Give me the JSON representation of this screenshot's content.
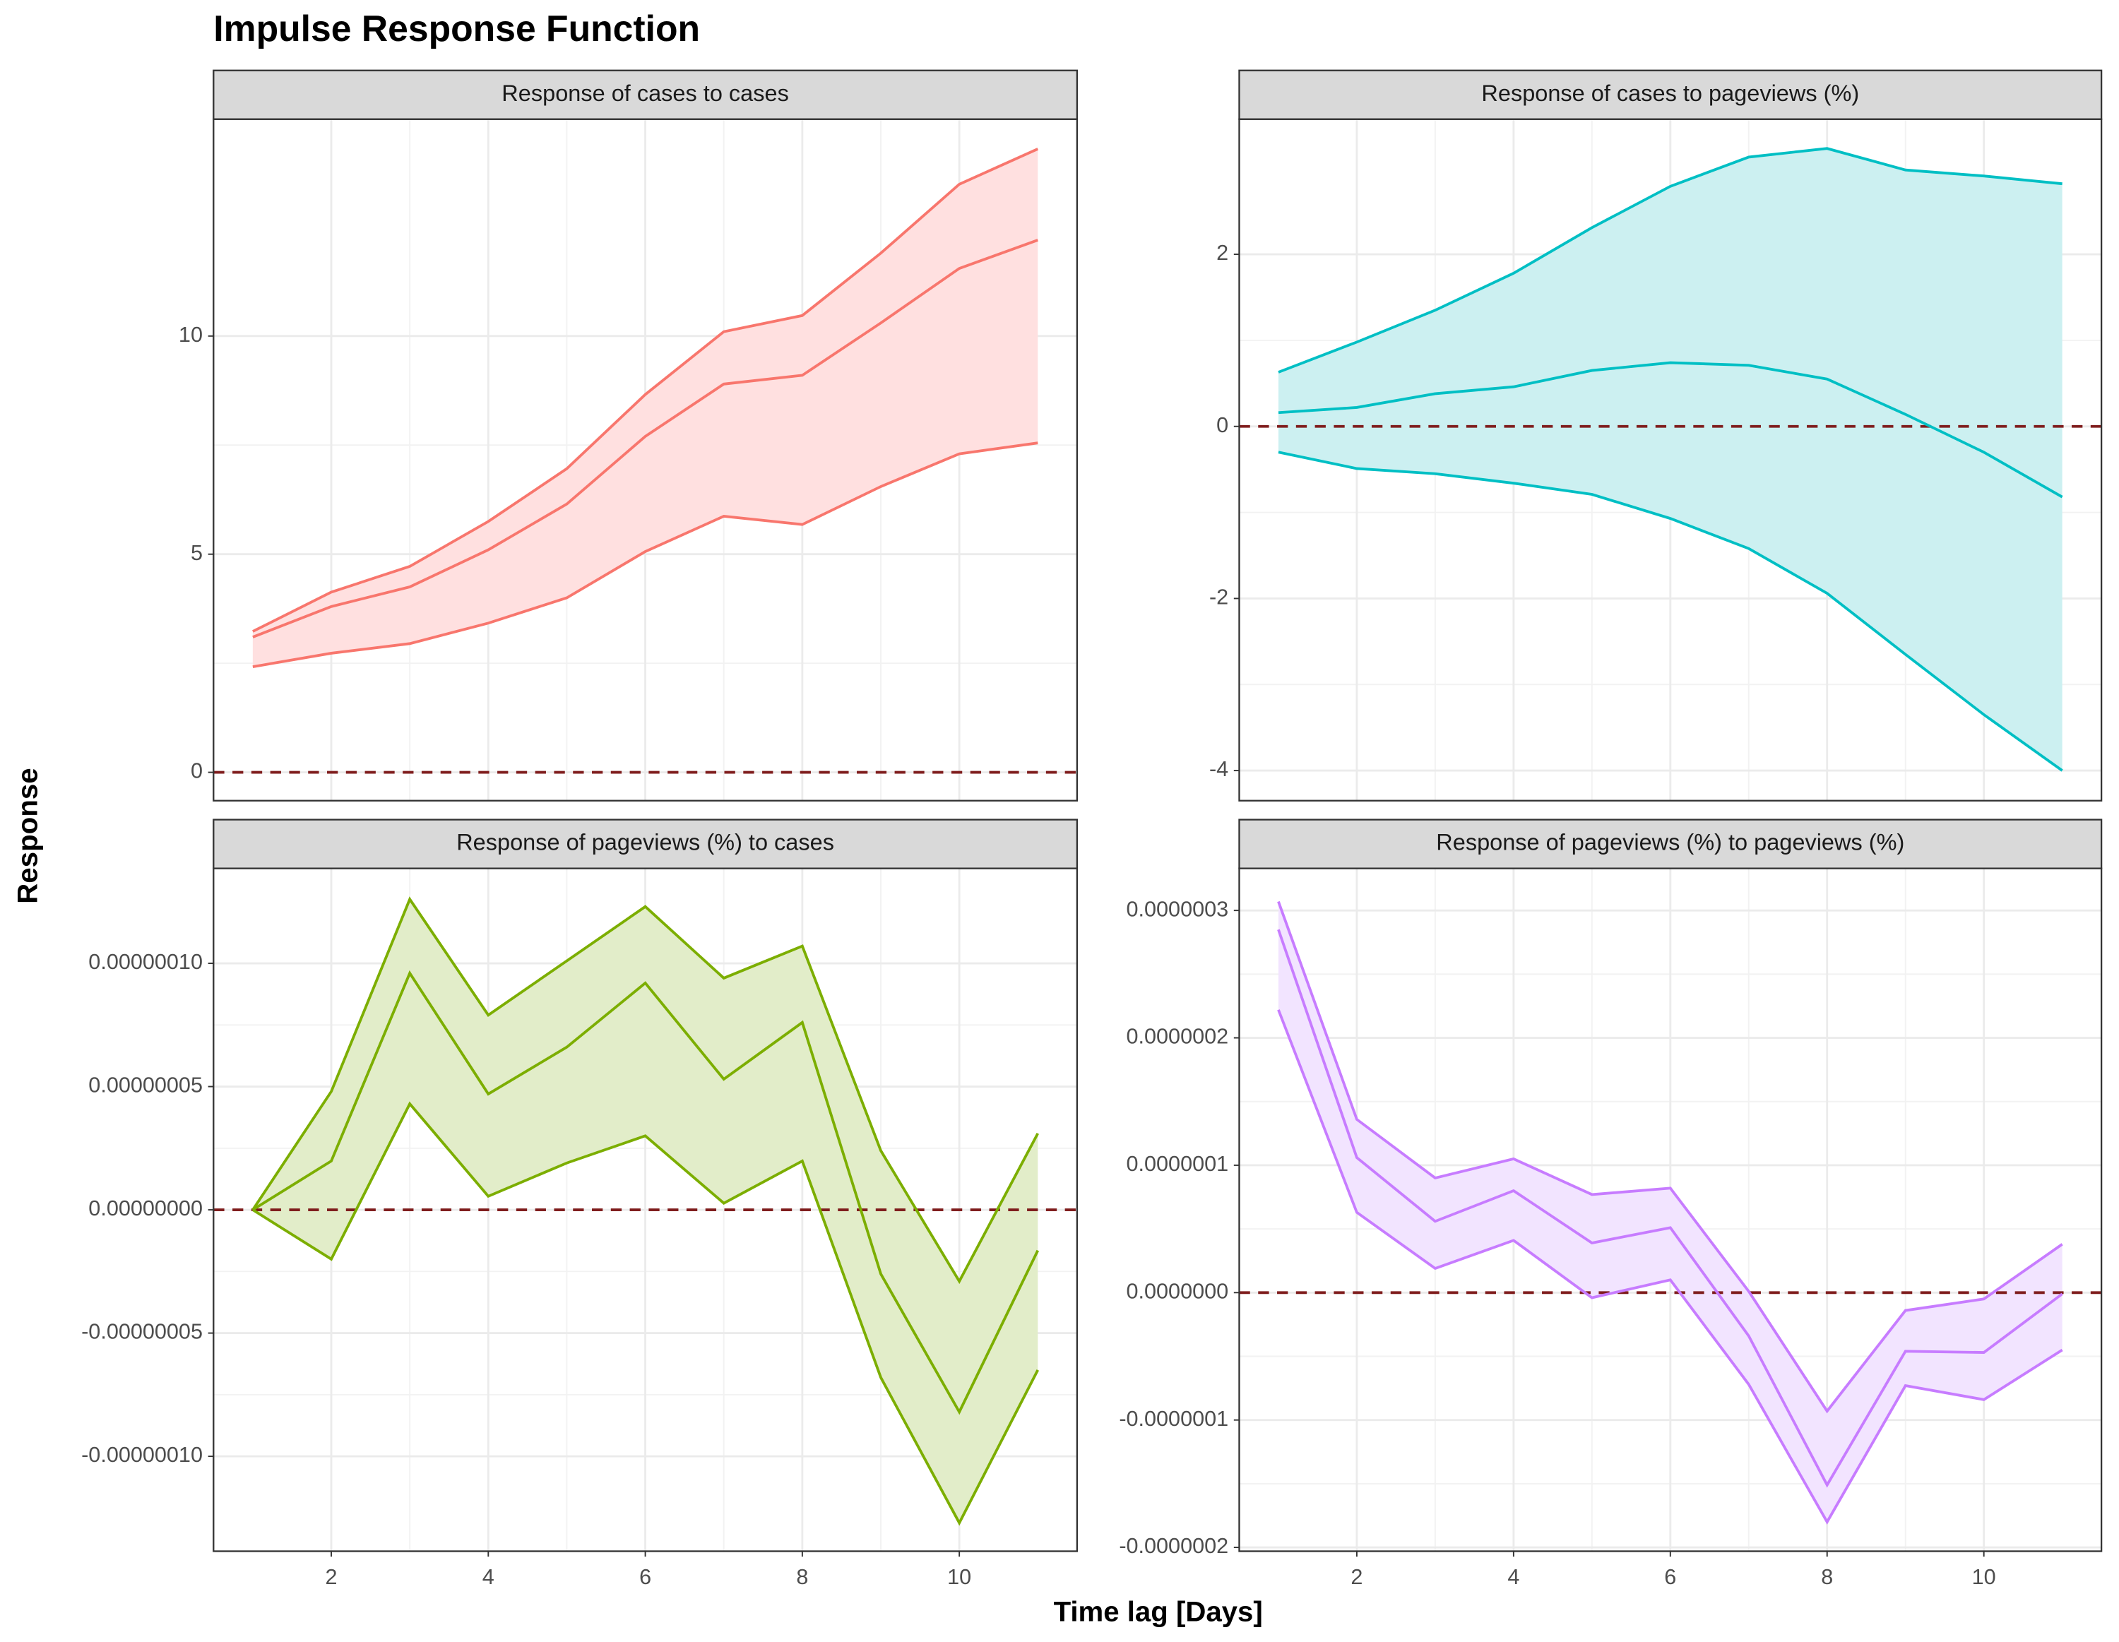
{
  "title": "Impulse Response Function",
  "x_label": "Time lag [Days]",
  "y_label": "Response",
  "chart_data": [
    {
      "type": "line",
      "title": "Response of cases to cases",
      "x": [
        1,
        2,
        3,
        4,
        5,
        6,
        7,
        8,
        9,
        10,
        11
      ],
      "values": [
        3.1,
        3.8,
        4.25,
        5.1,
        6.15,
        7.7,
        8.9,
        9.1,
        10.3,
        11.55,
        12.2
      ],
      "upper": [
        3.23,
        4.13,
        4.72,
        5.75,
        6.96,
        8.66,
        10.1,
        10.47,
        11.9,
        13.48,
        14.29
      ],
      "lower": [
        2.42,
        2.73,
        2.95,
        3.42,
        4.0,
        5.06,
        5.87,
        5.68,
        6.55,
        7.3,
        7.55
      ],
      "color": "#f8766d",
      "fill": "#ffe0e0",
      "hline": 0,
      "xlim": [
        0.5,
        11.5
      ],
      "xticks": [
        2,
        4,
        6,
        8,
        10
      ],
      "ylim": [
        -0.65,
        14.97
      ],
      "yticks": [
        0,
        5,
        10
      ],
      "grid": true
    },
    {
      "type": "line",
      "title": "Response of cases to pageviews (%)",
      "x": [
        1,
        2,
        3,
        4,
        5,
        6,
        7,
        8,
        9,
        10,
        11
      ],
      "values": [
        0.16,
        0.22,
        0.38,
        0.46,
        0.65,
        0.74,
        0.71,
        0.55,
        0.14,
        -0.3,
        -0.82
      ],
      "upper": [
        0.63,
        0.98,
        1.35,
        1.78,
        2.31,
        2.79,
        3.13,
        3.23,
        2.98,
        2.91,
        2.82
      ],
      "lower": [
        -0.3,
        -0.49,
        -0.55,
        -0.66,
        -0.79,
        -1.07,
        -1.42,
        -1.94,
        -2.65,
        -3.35,
        -4.0
      ],
      "color": "#00bfc4",
      "fill": "#ccf0f1",
      "hline": 0,
      "xlim": [
        0.5,
        11.5
      ],
      "xticks": [
        2,
        4,
        6,
        8,
        10
      ],
      "ylim": [
        -4.35,
        3.57
      ],
      "yticks": [
        -4,
        -2,
        0,
        2
      ],
      "grid": true
    },
    {
      "type": "line",
      "title": "Response of pageviews (%) to cases",
      "x": [
        1,
        2,
        3,
        4,
        5,
        6,
        7,
        8,
        9,
        10,
        11
      ],
      "values": [
        0,
        1.98e-08,
        9.6e-08,
        4.7e-08,
        6.6e-08,
        9.2e-08,
        5.3e-08,
        7.6e-08,
        -2.6e-08,
        -8.2e-08,
        -1.65e-08
      ],
      "upper": [
        0,
        4.8e-08,
        1.26e-07,
        7.9e-08,
        1.01e-07,
        1.23e-07,
        9.4e-08,
        1.07e-07,
        2.4e-08,
        -2.9e-08,
        3.1e-08
      ],
      "lower": [
        0,
        -2e-08,
        4.3e-08,
        5.5e-09,
        1.9e-08,
        3e-08,
        2.7e-09,
        1.98e-08,
        -6.8e-08,
        -1.27e-07,
        -6.5e-08
      ],
      "color": "#7cae00",
      "fill": "#e2edc9",
      "hline": 0,
      "xlim": [
        0.5,
        11.5
      ],
      "xticks": [
        2,
        4,
        6,
        8,
        10
      ],
      "ylim": [
        -1.385e-07,
        1.385e-07
      ],
      "yticks": [
        {
          "value": -1e-07,
          "label": "-0.00000010"
        },
        {
          "value": -5e-08,
          "label": "-0.00000005"
        },
        {
          "value": 0,
          "label": "0.00000000"
        },
        {
          "value": 5e-08,
          "label": "0.00000005"
        },
        {
          "value": 1e-07,
          "label": "0.00000010"
        }
      ],
      "grid": true
    },
    {
      "type": "line",
      "title": "Response of pageviews (%) to pageviews (%)",
      "x": [
        1,
        2,
        3,
        4,
        5,
        6,
        7,
        8,
        9,
        10,
        11
      ],
      "values": [
        2.85e-07,
        1.06e-07,
        5.6e-08,
        8e-08,
        3.9e-08,
        5.1e-08,
        -3.4e-08,
        -1.51e-07,
        -4.6e-08,
        -4.7e-08,
        -1e-09
      ],
      "upper": [
        3.07e-07,
        1.36e-07,
        9e-08,
        1.05e-07,
        7.7e-08,
        8.2e-08,
        1e-09,
        -9.3e-08,
        -1.4e-08,
        -5e-09,
        3.8e-08
      ],
      "lower": [
        2.22e-07,
        6.3e-08,
        1.9e-08,
        4.1e-08,
        -4e-09,
        1e-08,
        -7.2e-08,
        -1.8e-07,
        -7.3e-08,
        -8.4e-08,
        -4.5e-08
      ],
      "color": "#c77cff",
      "fill": "#f2e4ff",
      "hline": 0,
      "xlim": [
        0.5,
        11.5
      ],
      "xticks": [
        2,
        4,
        6,
        8,
        10
      ],
      "ylim": [
        -2.03e-07,
        3.33e-07
      ],
      "yticks": [
        {
          "value": -2e-07,
          "label": "-0.0000002"
        },
        {
          "value": -1e-07,
          "label": "-0.0000001"
        },
        {
          "value": 0,
          "label": "0.0000000"
        },
        {
          "value": 1e-07,
          "label": "0.0000001"
        },
        {
          "value": 2e-07,
          "label": "0.0000002"
        },
        {
          "value": 3e-07,
          "label": "0.0000003"
        }
      ],
      "grid": true
    }
  ]
}
